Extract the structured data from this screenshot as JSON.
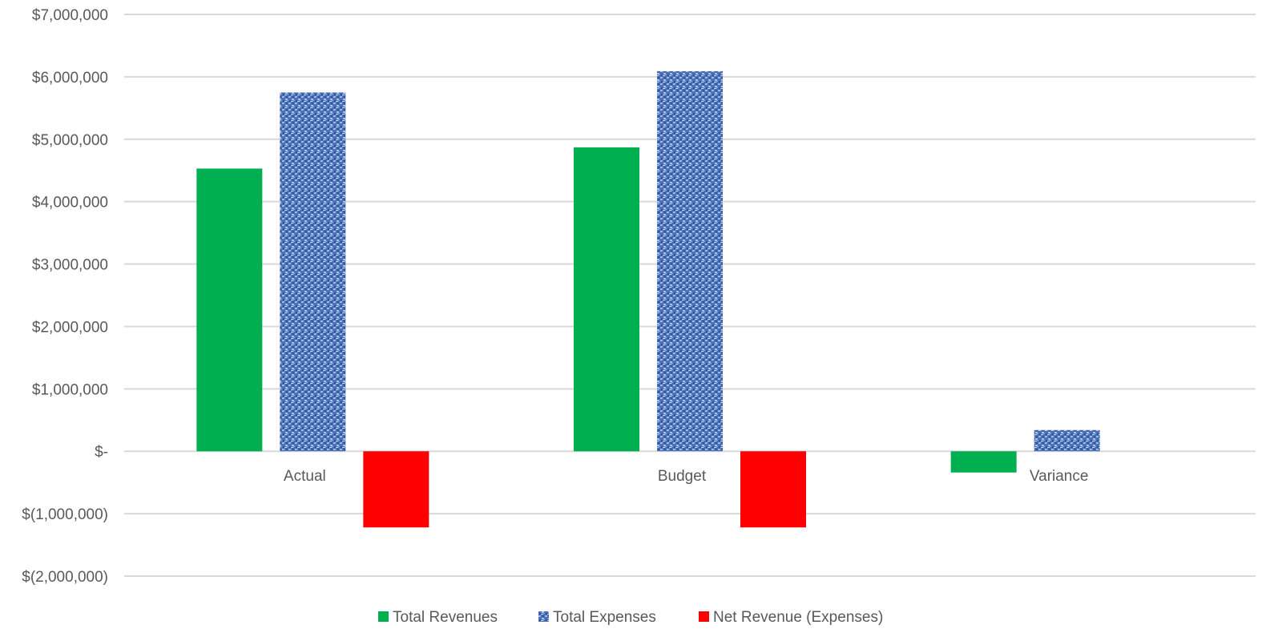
{
  "chart_data": {
    "type": "bar",
    "categories": [
      "Actual",
      "Budget",
      "Variance"
    ],
    "series": [
      {
        "name": "Total Revenues",
        "color": "#00b050",
        "pattern": "solid",
        "values": [
          4530000,
          4870000,
          -340000
        ]
      },
      {
        "name": "Total Expenses",
        "color": "#4472c4",
        "pattern": "textured",
        "values": [
          5750000,
          6090000,
          340000
        ]
      },
      {
        "name": "Net Revenue (Expenses)",
        "color": "#ff0000",
        "pattern": "solid",
        "values": [
          -1220000,
          -1220000,
          0
        ]
      }
    ],
    "ylim": [
      -2000000,
      7000000
    ],
    "y_ticks": [
      7000000,
      6000000,
      5000000,
      4000000,
      3000000,
      2000000,
      1000000,
      0,
      -1000000,
      -2000000
    ],
    "y_tick_labels": [
      "$7,000,000",
      "$6,000,000",
      "$5,000,000",
      "$4,000,000",
      "$3,000,000",
      "$2,000,000",
      "$1,000,000",
      "$-",
      "$(1,000,000)",
      "$(2,000,000)"
    ],
    "grid": true,
    "legend_position": "bottom",
    "title": "",
    "xlabel": "",
    "ylabel": ""
  }
}
